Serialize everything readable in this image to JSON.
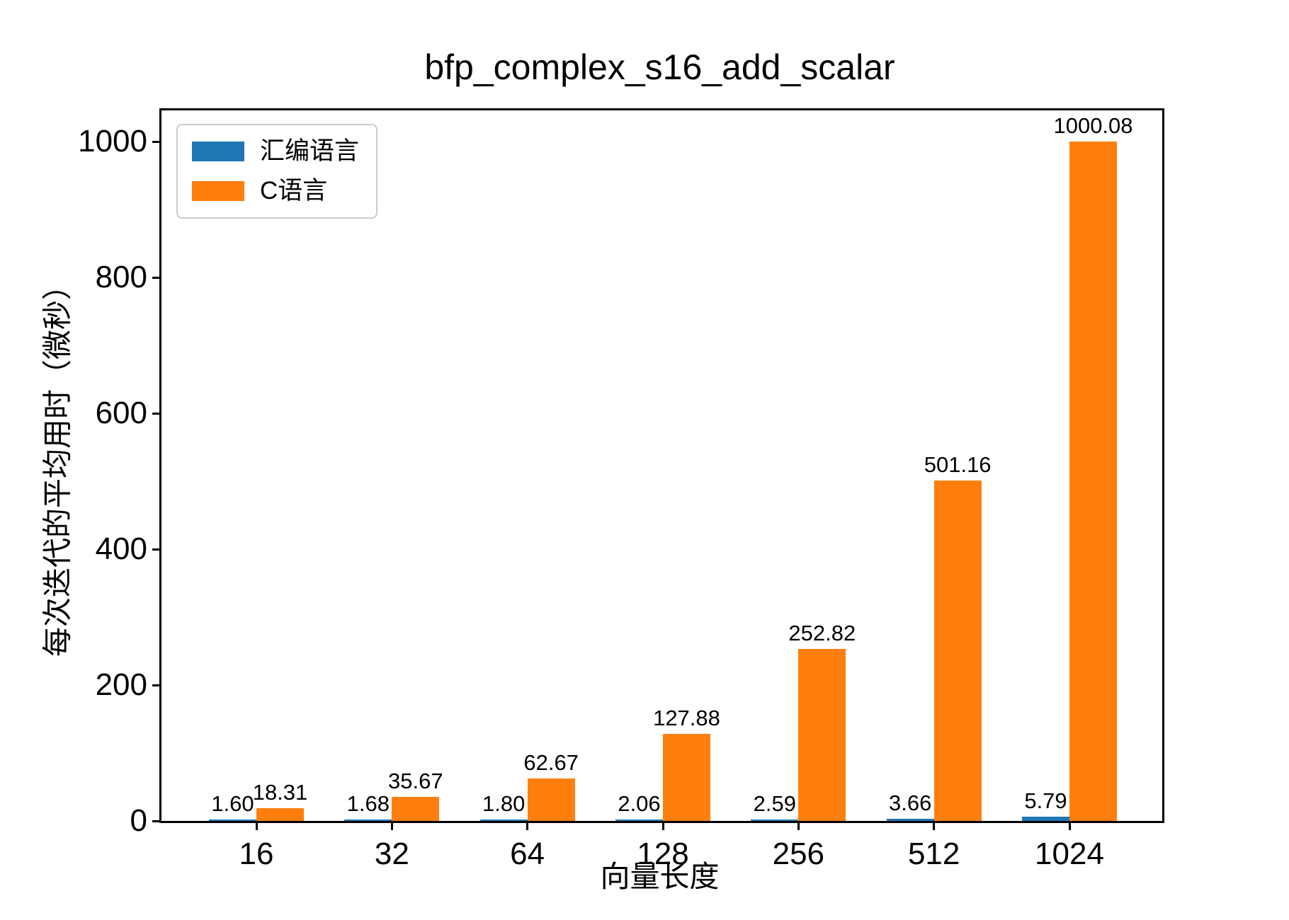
{
  "chart_data": {
    "type": "bar",
    "title": "bfp_complex_s16_add_scalar",
    "xlabel": "向量长度",
    "ylabel": "每次迭代的平均用时（微秒）",
    "categories": [
      "16",
      "32",
      "64",
      "128",
      "256",
      "512",
      "1024"
    ],
    "series": [
      {
        "name": "汇编语言",
        "color": "#1f77b4",
        "values": [
          1.6,
          1.68,
          1.8,
          2.06,
          2.59,
          3.66,
          5.79
        ],
        "labels": [
          "1.60",
          "1.68",
          "1.80",
          "2.06",
          "2.59",
          "3.66",
          "5.79"
        ]
      },
      {
        "name": "C语言",
        "color": "#ff7f0e",
        "values": [
          18.31,
          35.67,
          62.67,
          127.88,
          252.82,
          501.16,
          1000.08
        ],
        "labels": [
          "18.31",
          "35.67",
          "62.67",
          "127.88",
          "252.82",
          "501.16",
          "1000.08"
        ]
      }
    ],
    "yticks": [
      "0",
      "200",
      "400",
      "600",
      "800",
      "1000"
    ],
    "ylim": [
      0,
      1046
    ],
    "legend_position": "upper-left",
    "grid": false
  }
}
